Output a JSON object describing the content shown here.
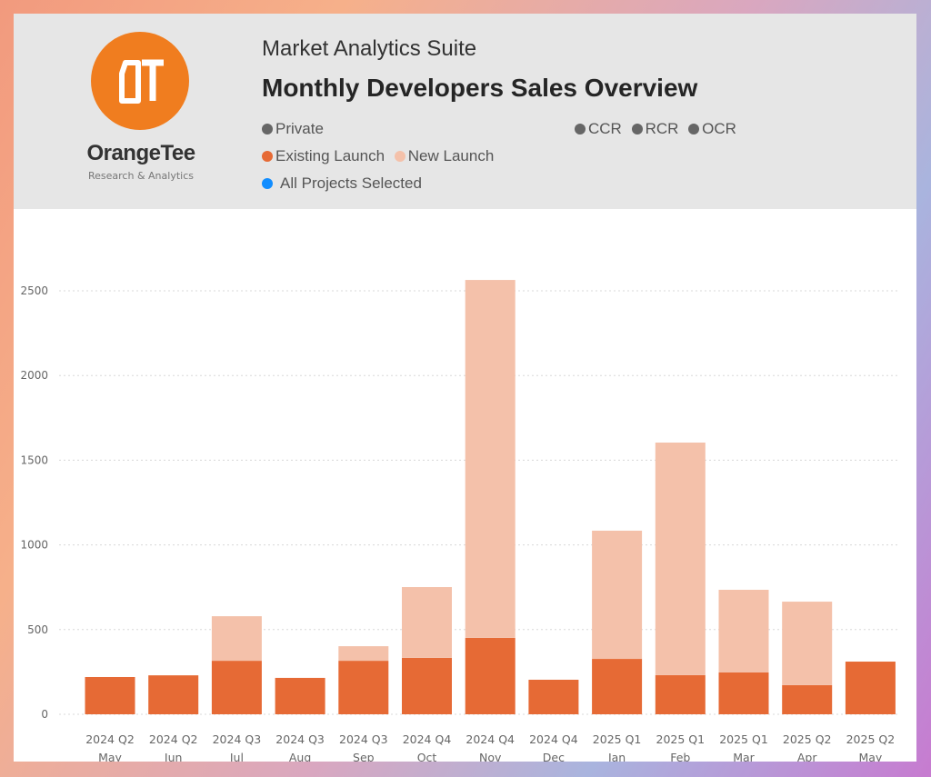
{
  "header": {
    "brand": "OrangeTee",
    "brand_sub": "Research & Analytics",
    "logo_letters": "OT",
    "subtitle": "Market Analytics Suite",
    "title": "Monthly Developers Sales Overview"
  },
  "filters": {
    "market": [
      {
        "label": "Private",
        "color": "#666666"
      }
    ],
    "regions": [
      {
        "label": "CCR",
        "color": "#666666"
      },
      {
        "label": "RCR",
        "color": "#666666"
      },
      {
        "label": "OCR",
        "color": "#666666"
      }
    ],
    "launch": [
      {
        "label": "Existing Launch",
        "color": "#e66a35"
      },
      {
        "label": "New Launch",
        "color": "#f4c1aa"
      }
    ],
    "projects": {
      "label": "All Projects Selected",
      "color": "#118dff"
    }
  },
  "chart_data": {
    "type": "bar",
    "stacked": true,
    "categories": [
      [
        "2024 Q2",
        "May"
      ],
      [
        "2024 Q2",
        "Jun"
      ],
      [
        "2024 Q3",
        "Jul"
      ],
      [
        "2024 Q3",
        "Aug"
      ],
      [
        "2024 Q3",
        "Sep"
      ],
      [
        "2024 Q4",
        "Oct"
      ],
      [
        "2024 Q4",
        "Nov"
      ],
      [
        "2024 Q4",
        "Dec"
      ],
      [
        "2025 Q1",
        "Jan"
      ],
      [
        "2025 Q1",
        "Feb"
      ],
      [
        "2025 Q1",
        "Mar"
      ],
      [
        "2025 Q2",
        "Apr"
      ],
      [
        "2025 Q2",
        "May"
      ]
    ],
    "series": [
      {
        "name": "Existing Launch",
        "color": "#e66a35",
        "values": [
          220,
          230,
          316,
          215,
          316,
          333,
          451,
          204,
          327,
          231,
          247,
          172,
          311
        ]
      },
      {
        "name": "New Launch",
        "color": "#f4c1aa",
        "values": [
          0,
          0,
          263,
          0,
          86,
          418,
          2113,
          0,
          757,
          1373,
          488,
          493,
          0
        ]
      }
    ],
    "yticks": [
      0,
      500,
      1000,
      1500,
      2000,
      2500
    ],
    "ylim": [
      0,
      2700
    ],
    "grid": true
  }
}
